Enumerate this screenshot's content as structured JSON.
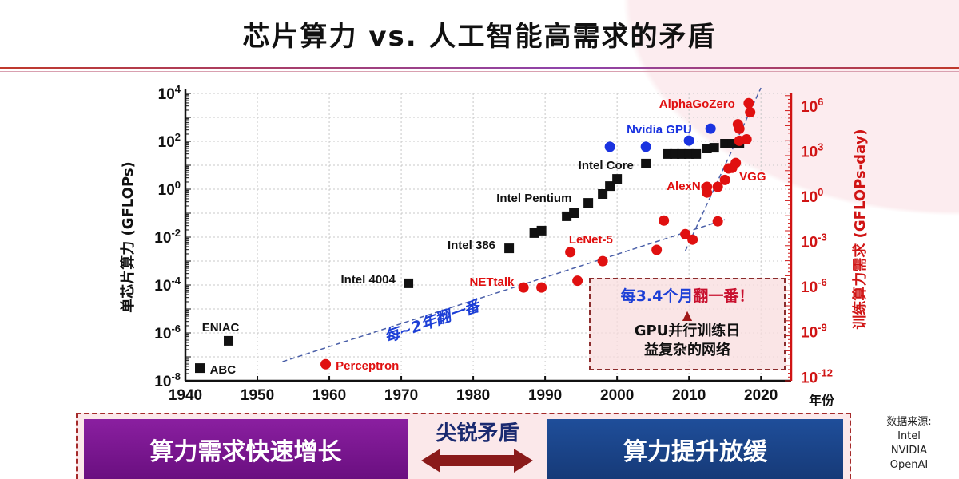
{
  "title": "芯片算力 vs. 人工智能高需求的矛盾",
  "colors": {
    "black_series": "#111111",
    "gpu_series": "#1a33e0",
    "ai_series": "#e01010",
    "right_axis": "#d01414",
    "trend": "#4a5fa8"
  },
  "chart_data": {
    "type": "scatter",
    "title": "",
    "xlabel": "年份",
    "ylabel": "单芯片算力 (GFLOPs)",
    "ylabel_right": "训练算力需求 (GFLOPs-day)",
    "xlim": [
      1940,
      2024.2
    ],
    "ylim_log10": [
      -8,
      4
    ],
    "ylim_right_log10": [
      -12.25,
      6.85
    ],
    "x_ticks": [
      "1940",
      "1950",
      "1960",
      "1970",
      "1980",
      "1990",
      "2000",
      "2010",
      "2020"
    ],
    "y_ticks_exp": [
      4,
      2,
      0,
      -2,
      -4,
      -6,
      -8
    ],
    "y_right_ticks_exp": [
      6,
      3,
      0,
      -3,
      -6,
      -9,
      -12
    ],
    "grid": true,
    "series": [
      {
        "name": "CPU (Intel etc.)",
        "marker": "square",
        "axis": "left",
        "color": "#111111",
        "points": [
          [
            1942,
            -7.47
          ],
          [
            1946,
            -6.33
          ],
          [
            1971,
            -3.93
          ],
          [
            1985,
            -2.47
          ],
          [
            1988.5,
            -1.83
          ],
          [
            1989.5,
            -1.73
          ],
          [
            1993,
            -1.13
          ],
          [
            1994,
            -1.0
          ],
          [
            1996,
            -0.57
          ],
          [
            1998,
            -0.2
          ],
          [
            1999,
            0.13
          ],
          [
            2000,
            0.43
          ],
          [
            2004,
            1.07
          ],
          [
            2007,
            1.47
          ],
          [
            2008,
            1.47
          ],
          [
            2009,
            1.47
          ],
          [
            2010,
            1.47
          ],
          [
            2011,
            1.47
          ],
          [
            2012.5,
            1.7
          ],
          [
            2013.5,
            1.73
          ],
          [
            2015,
            1.9
          ],
          [
            2016,
            1.9
          ],
          [
            2017,
            1.9
          ]
        ]
      },
      {
        "name": "Nvidia GPU",
        "marker": "circle",
        "axis": "left",
        "color": "#1a33e0",
        "points": [
          [
            1999,
            1.77
          ],
          [
            2004,
            1.77
          ],
          [
            2010,
            2.03
          ],
          [
            2013,
            2.53
          ]
        ]
      },
      {
        "name": "AI training compute",
        "marker": "circle",
        "axis": "right",
        "color": "#e01010",
        "points": [
          [
            1959.5,
            -11.15
          ],
          [
            1987,
            -6.05
          ],
          [
            1989.5,
            -6.05
          ],
          [
            1994.5,
            -5.6
          ],
          [
            1993.5,
            -3.7
          ],
          [
            1998,
            -4.3
          ],
          [
            2005.5,
            -3.55
          ],
          [
            2006.5,
            -1.6
          ],
          [
            2009.5,
            -2.5
          ],
          [
            2010.5,
            -2.87
          ],
          [
            2014,
            -1.65
          ],
          [
            2012.5,
            0.64
          ],
          [
            2012.5,
            0.26
          ],
          [
            2014,
            0.64
          ],
          [
            2015,
            1.1
          ],
          [
            2015.5,
            1.86
          ],
          [
            2016.5,
            2.23
          ],
          [
            2016,
            1.9
          ],
          [
            2017,
            3.7
          ],
          [
            2016.8,
            4.8
          ],
          [
            2017,
            4.5
          ],
          [
            2018,
            3.8
          ],
          [
            2018.5,
            5.6
          ],
          [
            2018.3,
            6.2
          ]
        ]
      }
    ],
    "trend_lines": [
      {
        "name": "cpu-trend",
        "from": [
          1953.5,
          -7.2
        ],
        "to": [
          2015,
          -1.27
        ]
      },
      {
        "name": "ai-trend",
        "from": [
          2009.5,
          -2.57
        ],
        "to": [
          2020,
          4.23
        ]
      }
    ],
    "annotations": [
      {
        "text": "ENIAC",
        "x": 1942.3,
        "y": -5.93,
        "anchor": "start",
        "color": "#111111"
      },
      {
        "text": "ABC",
        "x": 1943.4,
        "y": -7.7,
        "anchor": "start",
        "color": "#111111"
      },
      {
        "text": "Intel 4004",
        "x": 1969.2,
        "y": -3.93,
        "anchor": "end",
        "color": "#111111"
      },
      {
        "text": "Intel 386",
        "x": 1983.1,
        "y": -2.5,
        "anchor": "end",
        "color": "#111111"
      },
      {
        "text": "Intel Pentium",
        "x": 1993.7,
        "y": -0.53,
        "anchor": "end",
        "color": "#111111"
      },
      {
        "text": "Intel Core",
        "x": 2002.3,
        "y": 0.83,
        "anchor": "end",
        "color": "#111111"
      },
      {
        "text": "Nvidia GPU",
        "x": 2010.4,
        "y": 2.33,
        "anchor": "end",
        "color": "#1a33e0"
      },
      {
        "text": "AlphaGoZero",
        "x": 2016.4,
        "y": 3.4,
        "anchor": "end",
        "color": "#e01010"
      },
      {
        "text": "AlexNet",
        "x": 2013.1,
        "y": -0.03,
        "anchor": "end",
        "color": "#e01010"
      },
      {
        "text": "VGG",
        "x": 2017,
        "y": 0.37,
        "anchor": "start",
        "color": "#e01010"
      },
      {
        "text": "LeNet-5",
        "x": 1993.3,
        "y": -2.27,
        "anchor": "start",
        "color": "#e01010"
      },
      {
        "text": "NETtalk",
        "x": 1985.7,
        "y": -4.03,
        "anchor": "end",
        "color": "#e01010"
      },
      {
        "text": "Perceptron",
        "x": 1960.9,
        "y": -7.53,
        "anchor": "start",
        "color": "#e01010"
      }
    ],
    "slogan_cpu": "每~2年翻一番",
    "callout": {
      "blue": "每3.4个月",
      "red": "翻一番！",
      "line1": "GPU并行训练日",
      "line2": "益复杂的网络"
    }
  },
  "bottom": {
    "left_box": "算力需求快速增长",
    "middle": "尖锐矛盾",
    "right_box": "算力提升放缓"
  },
  "source": {
    "label": "数据来源:",
    "items": [
      "Intel",
      "NVIDIA",
      "OpenAI"
    ]
  }
}
